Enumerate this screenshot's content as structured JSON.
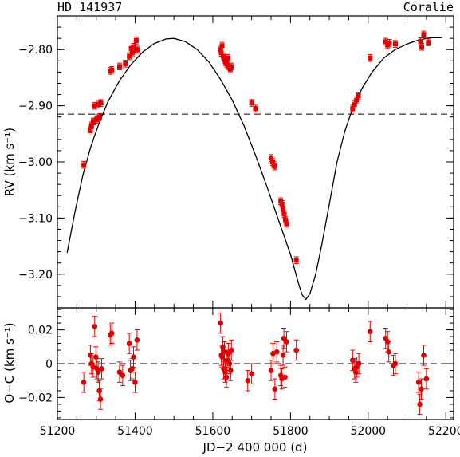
{
  "header": {
    "left_title": "HD 141937",
    "right_title": "Coralie"
  },
  "chart_data": [
    {
      "type": "scatter",
      "panel": "rv",
      "ylabel": "RV (km s⁻¹)",
      "xlim": [
        51200,
        52220
      ],
      "ylim": [
        -3.26,
        -2.74
      ],
      "xticks": [
        51200,
        51400,
        51600,
        51800,
        52000,
        52200
      ],
      "yticks": [
        -2.8,
        -2.9,
        -3.0,
        -3.1,
        -3.2
      ],
      "ytick_labels": [
        "−2.80",
        "−2.90",
        "−3.00",
        "−3.10",
        "−3.20"
      ],
      "reference_line": -2.915,
      "model_curve": [
        [
          51225,
          -3.162
        ],
        [
          51245,
          -3.09
        ],
        [
          51265,
          -3.025
        ],
        [
          51285,
          -2.975
        ],
        [
          51305,
          -2.935
        ],
        [
          51330,
          -2.893
        ],
        [
          51360,
          -2.855
        ],
        [
          51390,
          -2.826
        ],
        [
          51420,
          -2.804
        ],
        [
          51450,
          -2.789
        ],
        [
          51480,
          -2.781
        ],
        [
          51500,
          -2.78
        ],
        [
          51530,
          -2.786
        ],
        [
          51560,
          -2.8
        ],
        [
          51590,
          -2.822
        ],
        [
          51620,
          -2.853
        ],
        [
          51650,
          -2.89
        ],
        [
          51680,
          -2.935
        ],
        [
          51710,
          -2.988
        ],
        [
          51740,
          -3.045
        ],
        [
          51770,
          -3.105
        ],
        [
          51800,
          -3.165
        ],
        [
          51820,
          -3.215
        ],
        [
          51830,
          -3.237
        ],
        [
          51840,
          -3.245
        ],
        [
          51850,
          -3.235
        ],
        [
          51865,
          -3.2
        ],
        [
          51880,
          -3.15
        ],
        [
          51900,
          -3.075
        ],
        [
          51920,
          -3.0
        ],
        [
          51940,
          -2.945
        ],
        [
          51960,
          -2.905
        ],
        [
          51985,
          -2.868
        ],
        [
          52010,
          -2.84
        ],
        [
          52040,
          -2.815
        ],
        [
          52070,
          -2.8
        ],
        [
          52100,
          -2.79
        ],
        [
          52130,
          -2.783
        ],
        [
          52160,
          -2.779
        ],
        [
          52190,
          -2.779
        ]
      ],
      "points": [
        [
          51268,
          -3.005
        ],
        [
          51285,
          -2.942
        ],
        [
          51288,
          -2.935
        ],
        [
          51292,
          -2.928
        ],
        [
          51296,
          -2.9
        ],
        [
          51300,
          -2.925
        ],
        [
          51303,
          -2.922
        ],
        [
          51306,
          -2.898
        ],
        [
          51309,
          -2.92
        ],
        [
          51312,
          -2.895
        ],
        [
          51336,
          -2.838
        ],
        [
          51340,
          -2.836
        ],
        [
          51360,
          -2.83
        ],
        [
          51375,
          -2.825
        ],
        [
          51385,
          -2.812
        ],
        [
          51390,
          -2.798
        ],
        [
          51393,
          -2.805
        ],
        [
          51397,
          -2.795
        ],
        [
          51400,
          -2.8
        ],
        [
          51403,
          -2.784
        ],
        [
          51406,
          -2.8
        ],
        [
          51620,
          -2.8
        ],
        [
          51622,
          -2.806
        ],
        [
          51624,
          -2.793
        ],
        [
          51627,
          -2.812
        ],
        [
          51630,
          -2.818
        ],
        [
          51633,
          -2.822
        ],
        [
          51636,
          -2.826
        ],
        [
          51639,
          -2.815
        ],
        [
          51642,
          -2.83
        ],
        [
          51645,
          -2.835
        ],
        [
          51648,
          -2.83
        ],
        [
          51700,
          -2.895
        ],
        [
          51710,
          -2.905
        ],
        [
          51750,
          -2.993
        ],
        [
          51754,
          -3.0
        ],
        [
          51757,
          -3.005
        ],
        [
          51760,
          -3.008
        ],
        [
          51775,
          -3.07
        ],
        [
          51778,
          -3.075
        ],
        [
          51781,
          -3.085
        ],
        [
          51784,
          -3.093
        ],
        [
          51787,
          -3.103
        ],
        [
          51790,
          -3.11
        ],
        [
          51815,
          -3.175
        ],
        [
          51960,
          -2.905
        ],
        [
          51965,
          -2.898
        ],
        [
          51970,
          -2.89
        ],
        [
          51975,
          -2.882
        ],
        [
          52005,
          -2.815
        ],
        [
          52045,
          -2.786
        ],
        [
          52050,
          -2.792
        ],
        [
          52055,
          -2.788
        ],
        [
          52070,
          -2.79
        ],
        [
          52135,
          -2.785
        ],
        [
          52138,
          -2.795
        ],
        [
          52143,
          -2.773
        ],
        [
          52155,
          -2.787
        ]
      ],
      "error": 0.006
    },
    {
      "type": "scatter",
      "panel": "residuals",
      "xlabel": "JD−2 400 000 (d)",
      "ylabel": "O−C (km s⁻¹)",
      "xlim": [
        51200,
        52220
      ],
      "ylim": [
        -0.033,
        0.033
      ],
      "xticks": [
        51200,
        51400,
        51600,
        51800,
        52000,
        52200
      ],
      "xtick_labels": [
        "51200",
        "51400",
        "51600",
        "51800",
        "52000",
        "52200"
      ],
      "yticks": [
        0.02,
        0,
        -0.02
      ],
      "ytick_labels": [
        "0.02",
        "0",
        "−0.02"
      ],
      "reference_line": 0,
      "points": [
        [
          51268,
          -0.011
        ],
        [
          51285,
          0.005
        ],
        [
          51288,
          0.0
        ],
        [
          51292,
          -0.002
        ],
        [
          51296,
          0.022
        ],
        [
          51299,
          0.004
        ],
        [
          51302,
          -0.003
        ],
        [
          51305,
          -0.005
        ],
        [
          51308,
          -0.016
        ],
        [
          51311,
          -0.021
        ],
        [
          51314,
          -0.003
        ],
        [
          51336,
          0.017
        ],
        [
          51340,
          0.018
        ],
        [
          51360,
          -0.005
        ],
        [
          51368,
          -0.007
        ],
        [
          51385,
          0.012
        ],
        [
          51388,
          -0.004
        ],
        [
          51392,
          -0.003
        ],
        [
          51396,
          0.004
        ],
        [
          51400,
          -0.011
        ],
        [
          51405,
          0.014
        ],
        [
          51620,
          0.024
        ],
        [
          51622,
          0.005
        ],
        [
          51624,
          0.004
        ],
        [
          51626,
          0.01
        ],
        [
          51628,
          -0.003
        ],
        [
          51630,
          0.007
        ],
        [
          51632,
          -0.005
        ],
        [
          51635,
          -0.008
        ],
        [
          51637,
          0.002
        ],
        [
          51640,
          0.006
        ],
        [
          51643,
          0.0
        ],
        [
          51646,
          -0.004
        ],
        [
          51648,
          0.008
        ],
        [
          51690,
          -0.01
        ],
        [
          51700,
          -0.006
        ],
        [
          51750,
          -0.004
        ],
        [
          51755,
          0.006
        ],
        [
          51760,
          -0.015
        ],
        [
          51765,
          0.007
        ],
        [
          51775,
          -0.007
        ],
        [
          51778,
          -0.009
        ],
        [
          51781,
          0.005
        ],
        [
          51783,
          0.015
        ],
        [
          51786,
          -0.008
        ],
        [
          51790,
          0.013
        ],
        [
          51815,
          0.008
        ],
        [
          51960,
          0.002
        ],
        [
          51965,
          -0.003
        ],
        [
          51968,
          -0.005
        ],
        [
          51971,
          -0.002
        ],
        [
          51976,
          0.0
        ],
        [
          52005,
          0.019
        ],
        [
          52045,
          0.015
        ],
        [
          52050,
          0.013
        ],
        [
          52053,
          0.007
        ],
        [
          52065,
          -0.001
        ],
        [
          52070,
          0.0
        ],
        [
          52130,
          -0.011
        ],
        [
          52133,
          -0.024
        ],
        [
          52137,
          -0.015
        ],
        [
          52143,
          0.005
        ],
        [
          52150,
          -0.009
        ]
      ],
      "error": 0.006
    }
  ]
}
